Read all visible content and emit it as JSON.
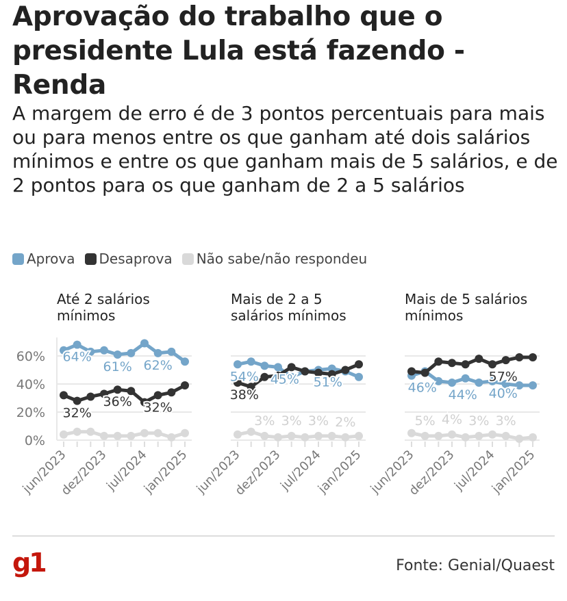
{
  "title": "Aprovação do trabalho que o presidente Lula está fazendo - Renda",
  "subtitle": "A margem de erro é de 3 pontos percentuais para mais ou para menos entre os que ganham até dois salários mínimos e entre os que ganham mais de 5 salários, e de 2 pontos para os que ganham de 2 a 5 salários",
  "footer": {
    "logo": "g1",
    "source": "Fonte: Genial/Quaest"
  },
  "colors": {
    "aprova": "#74a5c9",
    "desaprova": "#333333",
    "nao_sabe": "#d9d9d9"
  },
  "chart_data": {
    "type": "line",
    "legend": [
      "Aprova",
      "Desaprova",
      "Não sabe/não respondeu"
    ],
    "legend_position": "top-left",
    "y_ticks": [
      "0%",
      "20%",
      "40%",
      "60%"
    ],
    "ylim": [
      0,
      70
    ],
    "x_ticks": [
      "jun/2023",
      "dez/2023",
      "jul/2024",
      "jan/2025"
    ],
    "x_tick_index": [
      0,
      3,
      6,
      9
    ],
    "panels": [
      {
        "title": "Até 2 salários mínimos",
        "series": [
          {
            "name": "Aprova",
            "values": [
              64,
              68,
              63,
              64,
              61,
              62,
              69,
              62,
              63,
              56
            ],
            "labels": [
              {
                "i": 1,
                "text": "64%"
              },
              {
                "i": 4,
                "text": "61%"
              },
              {
                "i": 7,
                "text": "62%"
              }
            ],
            "label_side": "below"
          },
          {
            "name": "Desaprova",
            "values": [
              32,
              28,
              31,
              33,
              36,
              35,
              27,
              32,
              34,
              39
            ],
            "labels": [
              {
                "i": 1,
                "text": "32%"
              },
              {
                "i": 4,
                "text": "36%"
              },
              {
                "i": 7,
                "text": "32%"
              }
            ],
            "label_side": "below"
          },
          {
            "name": "Não sabe/não respondeu",
            "values": [
              4,
              6,
              6,
              3,
              3,
              3,
              5,
              5,
              2,
              5
            ],
            "labels": [],
            "label_side": "above"
          }
        ]
      },
      {
        "title": "Mais de 2 a 5 salários mínimos",
        "series": [
          {
            "name": "Aprova",
            "values": [
              54,
              56,
              53,
              52,
              45,
              49,
              50,
              51,
              49,
              45
            ],
            "labels": [
              {
                "i": 0.5,
                "text": "54%"
              },
              {
                "i": 3.5,
                "text": "45%"
              },
              {
                "i": 6.7,
                "text": "51%"
              }
            ],
            "label_side": "below"
          },
          {
            "name": "Desaprova",
            "values": [
              41,
              38,
              45,
              46,
              52,
              49,
              48,
              47,
              50,
              54
            ],
            "labels": [
              {
                "i": 0.5,
                "text": "38%"
              }
            ],
            "label_side": "below"
          },
          {
            "name": "Não sabe/não respondeu",
            "values": [
              4,
              6,
              3,
              2,
              3,
              2,
              3,
              3,
              2,
              3
            ],
            "labels": [
              {
                "i": 2,
                "text": "3%"
              },
              {
                "i": 4,
                "text": "3%"
              },
              {
                "i": 6,
                "text": "3%"
              },
              {
                "i": 8,
                "text": "2%"
              }
            ],
            "label_side": "above"
          }
        ]
      },
      {
        "title": "Mais de 5 salários mínimos",
        "series": [
          {
            "name": "Aprova",
            "values": [
              46,
              49,
              42,
              41,
              44,
              41,
              42,
              40,
              39,
              39
            ],
            "labels": [
              {
                "i": 0.8,
                "text": "46%"
              },
              {
                "i": 3.8,
                "text": "44%"
              },
              {
                "i": 6.8,
                "text": "40%"
              }
            ],
            "label_side": "below"
          },
          {
            "name": "Desaprova",
            "values": [
              49,
              48,
              56,
              55,
              54,
              58,
              54,
              57,
              59,
              59
            ],
            "labels": [
              {
                "i": 6.8,
                "text": "57%"
              }
            ],
            "label_side": "below"
          },
          {
            "name": "Não sabe/não respondeu",
            "values": [
              5,
              3,
              3,
              4,
              2,
              3,
              4,
              3,
              1,
              2
            ],
            "labels": [
              {
                "i": 1,
                "text": "5%"
              },
              {
                "i": 3,
                "text": "4%"
              },
              {
                "i": 5,
                "text": "3%"
              },
              {
                "i": 7,
                "text": "3%"
              }
            ],
            "label_side": "above"
          }
        ]
      }
    ]
  }
}
